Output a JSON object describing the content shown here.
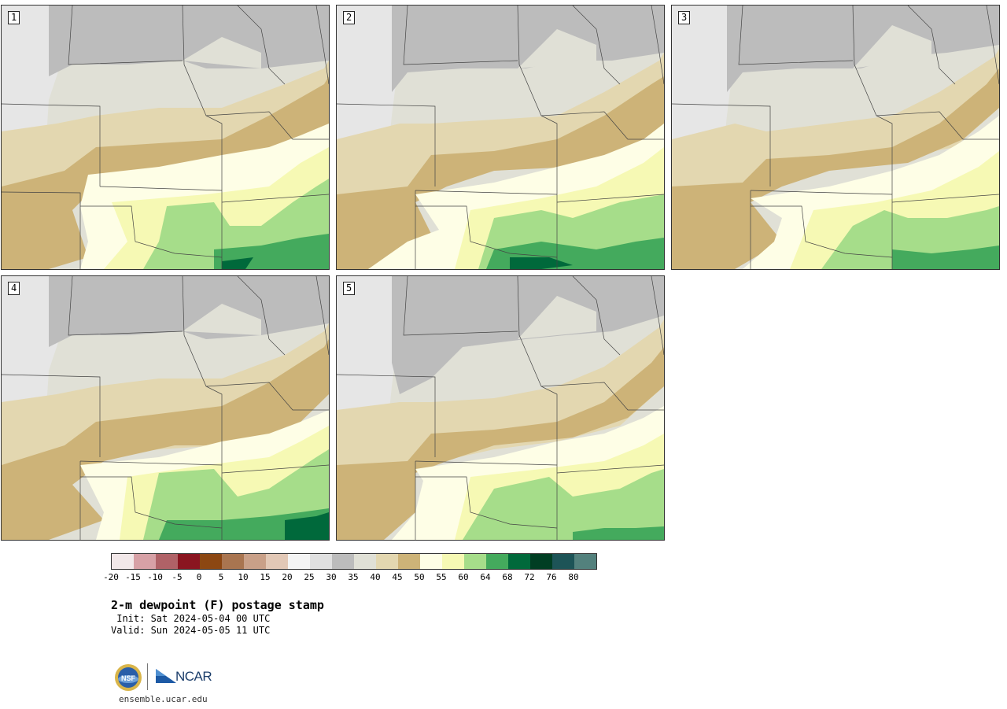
{
  "panels": [
    {
      "label": "1"
    },
    {
      "label": "2"
    },
    {
      "label": "3"
    },
    {
      "label": "4"
    },
    {
      "label": "5"
    }
  ],
  "colorbar": {
    "colors": [
      "#f2e8e9",
      "#d7a1a6",
      "#b06267",
      "#8a1520",
      "#8c4712",
      "#a97550",
      "#c9a088",
      "#e2c8b6",
      "#f4f4f4",
      "#e0e0e0",
      "#bcbcbc",
      "#e0e0d6",
      "#e3d7b0",
      "#cdb378",
      "#fefee6",
      "#f6f9b4",
      "#a6dd8a",
      "#44aa5d",
      "#00693b",
      "#003e23",
      "#1d5457",
      "#53817d"
    ],
    "tick_labels": [
      "-20",
      "-15",
      "-10",
      "-5",
      "0",
      "5",
      "10",
      "15",
      "20",
      "25",
      "30",
      "35",
      "40",
      "45",
      "50",
      "55",
      "60",
      "64",
      "68",
      "72",
      "76",
      "80"
    ]
  },
  "title": "2-m dewpoint (F) postage stamp",
  "init": " Init: Sat 2024-05-04 00 UTC",
  "valid": "Valid: Sun 2024-05-05 11 UTC",
  "logos": {
    "nsf": "NSF",
    "ncar": "NCAR"
  },
  "website": "ensemble.ucar.edu"
}
